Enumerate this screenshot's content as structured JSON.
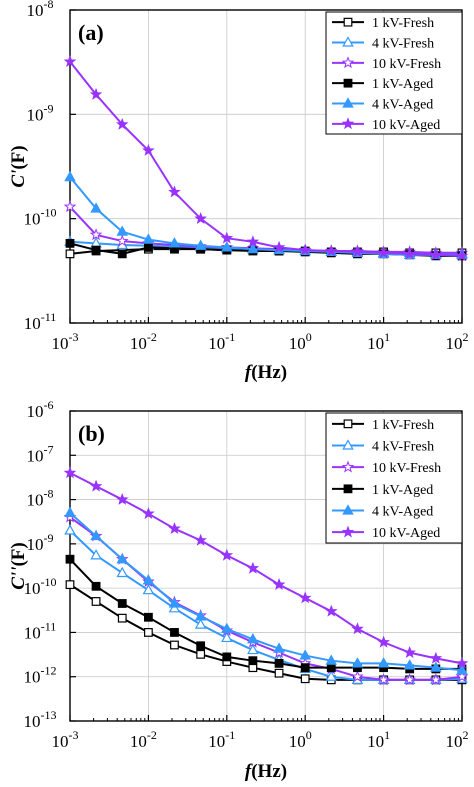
{
  "chart_data": [
    {
      "type": "line",
      "panel_label": "(a)",
      "xlabel": "f(Hz)",
      "ylabel": "C'(F)",
      "x_scale": "log",
      "y_scale": "log",
      "xlim": [
        0.001,
        100
      ],
      "ylim": [
        1e-11,
        1e-08
      ],
      "grid": true,
      "legend_position": "top-right",
      "x_ticks": [
        {
          "value": 0.001,
          "base": "10",
          "exp": "-3"
        },
        {
          "value": 0.01,
          "base": "10",
          "exp": "-2"
        },
        {
          "value": 0.1,
          "base": "10",
          "exp": "-1"
        },
        {
          "value": 1,
          "base": "10",
          "exp": "0"
        },
        {
          "value": 10,
          "base": "10",
          "exp": "1"
        },
        {
          "value": 100,
          "base": "10",
          "exp": "2"
        }
      ],
      "y_ticks": [
        {
          "value": 1e-11,
          "base": "10",
          "exp": "-11"
        },
        {
          "value": 1e-10,
          "base": "10",
          "exp": "-10"
        },
        {
          "value": 1e-09,
          "base": "10",
          "exp": "-9"
        },
        {
          "value": 1e-08,
          "base": "10",
          "exp": "-8"
        }
      ],
      "x": [
        0.001,
        0.00215,
        0.00464,
        0.01,
        0.0215,
        0.0464,
        0.1,
        0.215,
        0.464,
        1,
        2.15,
        4.64,
        10,
        21.5,
        46.4,
        100
      ],
      "series": [
        {
          "name": "1 kV-Fresh",
          "color": "#000000",
          "marker": "square-open",
          "values": [
            4.6e-11,
            4.9e-11,
            5e-11,
            5.1e-11,
            5.1e-11,
            5.1e-11,
            5e-11,
            5e-11,
            4.9e-11,
            4.9e-11,
            4.8e-11,
            4.8e-11,
            4.8e-11,
            4.7e-11,
            4.7e-11,
            4.7e-11
          ]
        },
        {
          "name": "4 kV-Fresh",
          "color": "#3399ff",
          "marker": "triangle-open",
          "values": [
            6e-11,
            5.8e-11,
            5.6e-11,
            5.5e-11,
            5.4e-11,
            5.3e-11,
            5.2e-11,
            5.1e-11,
            5e-11,
            4.9e-11,
            4.8e-11,
            4.8e-11,
            4.7e-11,
            4.7e-11,
            4.6e-11,
            4.6e-11
          ]
        },
        {
          "name": "10 kV-Fresh",
          "color": "#9933ff",
          "marker": "star-open",
          "values": [
            1.3e-10,
            7e-11,
            6.1e-11,
            5.8e-11,
            5.6e-11,
            5.4e-11,
            5.3e-11,
            5.2e-11,
            5.1e-11,
            5e-11,
            4.9e-11,
            4.9e-11,
            4.8e-11,
            4.8e-11,
            4.7e-11,
            4.7e-11
          ]
        },
        {
          "name": "1 kV-Aged",
          "color": "#000000",
          "marker": "square-filled",
          "values": [
            5.8e-11,
            5e-11,
            4.6e-11,
            5.3e-11,
            5.2e-11,
            5.1e-11,
            5e-11,
            4.9e-11,
            4.9e-11,
            4.8e-11,
            4.7e-11,
            4.6e-11,
            4.6e-11,
            4.5e-11,
            4.4e-11,
            4.4e-11
          ]
        },
        {
          "name": "4 kV-Aged",
          "color": "#3399ff",
          "marker": "triangle-filled",
          "values": [
            2.5e-10,
            1.25e-10,
            7.5e-11,
            6.3e-11,
            5.8e-11,
            5.5e-11,
            5.3e-11,
            5.1e-11,
            5e-11,
            4.9e-11,
            4.8e-11,
            4.7e-11,
            4.6e-11,
            4.5e-11,
            4.5e-11,
            4.5e-11
          ]
        },
        {
          "name": "10 kV-Aged",
          "color": "#9933ff",
          "marker": "star-filled",
          "values": [
            3.2e-09,
            1.55e-09,
            8e-10,
            4.5e-10,
            1.8e-10,
            1e-10,
            6.5e-11,
            6e-11,
            5.3e-11,
            5e-11,
            4.9e-11,
            4.8e-11,
            4.7e-11,
            4.6e-11,
            4.5e-11,
            4.4e-11
          ]
        }
      ]
    },
    {
      "type": "line",
      "panel_label": "(b)",
      "xlabel": "f(Hz)",
      "ylabel": "C''(F)",
      "x_scale": "log",
      "y_scale": "log",
      "xlim": [
        0.001,
        100
      ],
      "ylim": [
        1e-13,
        1e-06
      ],
      "grid": true,
      "legend_position": "top-right",
      "x_ticks": [
        {
          "value": 0.001,
          "base": "10",
          "exp": "-3"
        },
        {
          "value": 0.01,
          "base": "10",
          "exp": "-2"
        },
        {
          "value": 0.1,
          "base": "10",
          "exp": "-1"
        },
        {
          "value": 1,
          "base": "10",
          "exp": "0"
        },
        {
          "value": 10,
          "base": "10",
          "exp": "1"
        },
        {
          "value": 100,
          "base": "10",
          "exp": "2"
        }
      ],
      "y_ticks": [
        {
          "value": 1e-13,
          "base": "10",
          "exp": "-13"
        },
        {
          "value": 1e-12,
          "base": "10",
          "exp": "-12"
        },
        {
          "value": 1e-11,
          "base": "10",
          "exp": "-11"
        },
        {
          "value": 1e-10,
          "base": "10",
          "exp": "-10"
        },
        {
          "value": 1e-09,
          "base": "10",
          "exp": "-9"
        },
        {
          "value": 1e-08,
          "base": "10",
          "exp": "-8"
        },
        {
          "value": 1e-07,
          "base": "10",
          "exp": "-7"
        },
        {
          "value": 1e-06,
          "base": "10",
          "exp": "-6"
        }
      ],
      "x": [
        0.001,
        0.00215,
        0.00464,
        0.01,
        0.0215,
        0.0464,
        0.1,
        0.215,
        0.464,
        1,
        2.15,
        4.64,
        10,
        21.5,
        46.4,
        100
      ],
      "series": [
        {
          "name": "1 kV-Fresh",
          "color": "#000000",
          "marker": "square-open",
          "values": [
            1.2e-10,
            5e-11,
            2.1e-11,
            1e-11,
            5.2e-12,
            3.2e-12,
            2.2e-12,
            1.6e-12,
            1.2e-12,
            9e-13,
            8.5e-13,
            8.5e-13,
            8.5e-13,
            8.5e-13,
            8.5e-13,
            8.5e-13
          ]
        },
        {
          "name": "4 kV-Fresh",
          "color": "#3399ff",
          "marker": "triangle-open",
          "values": [
            2e-09,
            5.5e-10,
            2.2e-10,
            9e-11,
            3.5e-11,
            1.5e-11,
            7.5e-12,
            4e-12,
            2.4e-12,
            1.5e-12,
            1e-12,
            8.5e-13,
            8.5e-13,
            8.5e-13,
            8.5e-13,
            9e-13
          ]
        },
        {
          "name": "10 kV-Fresh",
          "color": "#9933ff",
          "marker": "star-open",
          "values": [
            4e-09,
            1.5e-09,
            4.5e-10,
            1.4e-10,
            4.8e-11,
            2.4e-11,
            1.1e-11,
            6e-12,
            3.5e-12,
            2e-12,
            1.5e-12,
            1e-12,
            8.5e-13,
            8.5e-13,
            8.5e-13,
            1e-12
          ]
        },
        {
          "name": "1 kV-Aged",
          "color": "#000000",
          "marker": "square-filled",
          "values": [
            4.5e-10,
            1.1e-10,
            4.5e-11,
            2.2e-11,
            1e-11,
            5e-12,
            2.8e-12,
            2.3e-12,
            2e-12,
            1.6e-12,
            1.6e-12,
            1.6e-12,
            1.6e-12,
            1.5e-12,
            1.5e-12,
            1.5e-12
          ]
        },
        {
          "name": "4 kV-Aged",
          "color": "#3399ff",
          "marker": "triangle-filled",
          "values": [
            5e-09,
            1.5e-09,
            4.5e-10,
            1.5e-10,
            4.5e-11,
            2.3e-11,
            1.2e-11,
            7e-12,
            4.3e-12,
            3e-12,
            2.3e-12,
            2e-12,
            2e-12,
            1.8e-12,
            1.6e-12,
            1.4e-12
          ]
        },
        {
          "name": "10 kV-Aged",
          "color": "#9933ff",
          "marker": "star-filled",
          "values": [
            4e-08,
            2e-08,
            1e-08,
            4.8e-09,
            2.2e-09,
            1.2e-09,
            5.5e-10,
            2.8e-10,
            1.2e-10,
            6e-11,
            3e-11,
            1.2e-11,
            6e-12,
            3.5e-12,
            2.6e-12,
            2e-12
          ]
        }
      ]
    }
  ]
}
